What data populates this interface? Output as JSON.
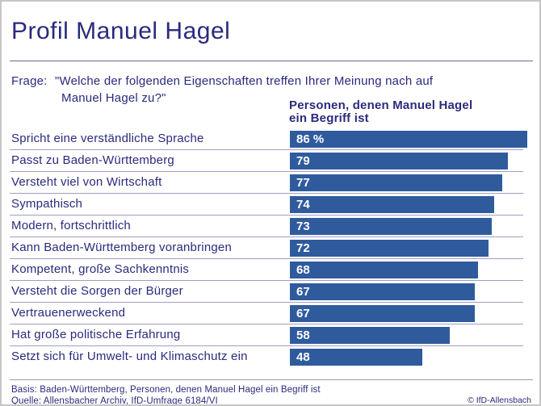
{
  "page": {
    "title": "Profil Manuel Hagel",
    "question": {
      "prefix": "Frage:",
      "line1": "\"Welche der folgenden Eigenschaften treffen Ihrer Meinung nach auf",
      "line2": "Manuel Hagel zu?\""
    },
    "column_header": {
      "line1": "Personen, denen Manuel Hagel",
      "line2": "ein Begriff ist"
    },
    "footer": {
      "basis": "Basis: Baden-Württemberg, Personen, denen Manuel Hagel ein Begriff ist",
      "quelle": "Quelle: Allensbacher Archiv, IfD-Umfrage 6184/VI",
      "copyright": "© IfD-Allensbach"
    }
  },
  "colors": {
    "bar": "#2f5b9d",
    "navy_text": "#2b2a7d",
    "row_line": "#9e9ec6",
    "section_line": "#6a6a92",
    "page_border": "#c6c6c6",
    "bar_value_text": "#ffffff"
  },
  "chart_data": {
    "type": "bar",
    "orientation": "horizontal",
    "title": "Profil Manuel Hagel",
    "subtitle": "Frage: \"Welche der folgenden Eigenschaften treffen Ihrer Meinung nach auf Manuel Hagel zu?\"",
    "series_header": "Personen, denen Manuel Hagel ein Begriff ist",
    "categories": [
      "Spricht eine verständliche Sprache",
      "Passt zu Baden-Württemberg",
      "Versteht viel von Wirtschaft",
      "Sympathisch",
      "Modern, fortschrittlich",
      "Kann Baden-Württemberg voranbringen",
      "Kompetent, große Sachkenntnis",
      "Versteht die Sorgen der Bürger",
      "Vertrauenerweckend",
      "Hat große politische Erfahrung",
      "Setzt sich für Umwelt- und Klimaschutz ein"
    ],
    "values": [
      86,
      79,
      77,
      74,
      73,
      72,
      68,
      67,
      67,
      58,
      48
    ],
    "value_labels": [
      "86 %",
      "79",
      "77",
      "74",
      "73",
      "72",
      "68",
      "67",
      "67",
      "58",
      "48"
    ],
    "unit": "%",
    "xlim": [
      0,
      100
    ],
    "grid": false,
    "legend_position": "none"
  }
}
